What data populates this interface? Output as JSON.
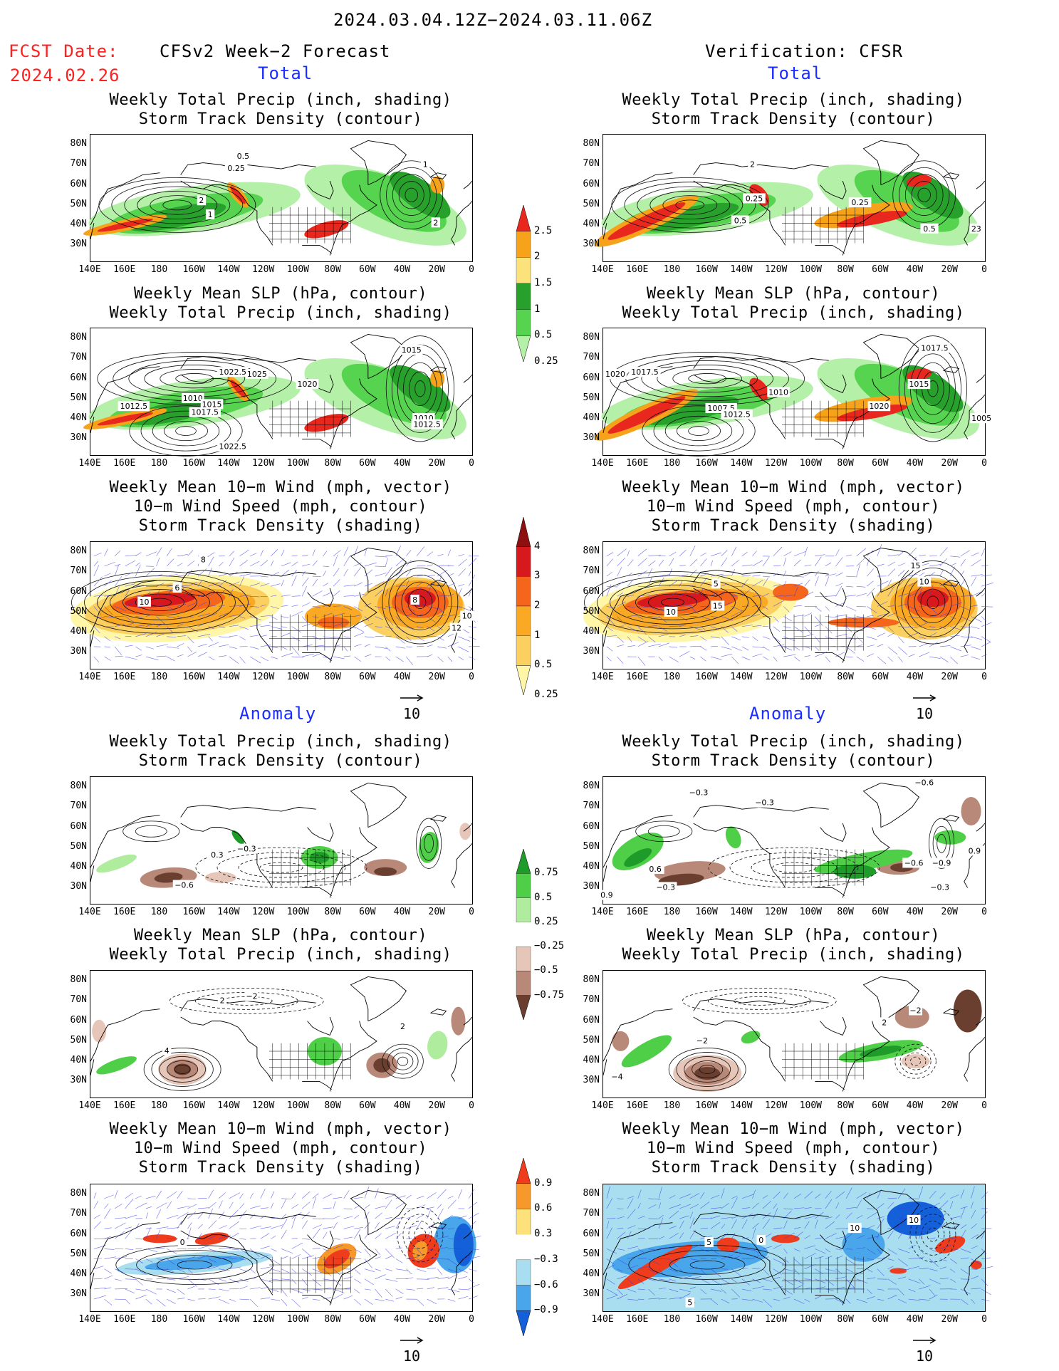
{
  "header": {
    "date_range": "2024.03.04.12Z−2024.03.11.06Z",
    "fcst_label": "FCST Date:",
    "fcst_date": "2024.02.26",
    "left_title": "CFSv2 Week−2 Forecast",
    "right_title": "Verification: CFSR",
    "total_label": "Total",
    "anomaly_label": "Anomaly"
  },
  "panel_titles": {
    "precip_storm": [
      "Weekly Total Precip (inch, shading)",
      "Storm Track Density (contour)"
    ],
    "slp_precip": [
      "Weekly Mean SLP (hPa, contour)",
      "Weekly Total Precip (inch, shading)"
    ],
    "wind": [
      "Weekly Mean 10−m Wind (mph, vector)",
      "10−m Wind Speed (mph, contour)",
      "Storm Track Density (shading)"
    ]
  },
  "axes": {
    "lat": [
      "80N",
      "70N",
      "60N",
      "50N",
      "40N",
      "30N"
    ],
    "lon": [
      "140E",
      "160E",
      "180",
      "160W",
      "140W",
      "120W",
      "100W",
      "80W",
      "60W",
      "40W",
      "20W",
      "0"
    ]
  },
  "vector_ref": "10",
  "colorbars": {
    "precip_total": {
      "labels": [
        "2.5",
        "2",
        "1.5",
        "1",
        "0.5",
        "0.25"
      ],
      "colors": [
        "#e8281e",
        "#f7a21b",
        "#fbe27a",
        "#27a12b",
        "#56d34f",
        "#b4f0a8"
      ]
    },
    "storm_total": {
      "labels": [
        "4",
        "3",
        "2",
        "1",
        "0.5",
        "0.25"
      ],
      "colors": [
        "#8c1010",
        "#d7181c",
        "#f5661c",
        "#f9a923",
        "#fbd060",
        "#fff6a8"
      ]
    },
    "precip_anom": {
      "labels": [
        "0.75",
        "0.5",
        "0.25",
        "−0.25",
        "−0.5",
        "−0.75"
      ],
      "colors": [
        "#1e9b28",
        "#4fcf48",
        "#b0ec9e",
        "#ffffff",
        "#e6c6b8",
        "#b88878",
        "#6a3f2f"
      ]
    },
    "storm_anom": {
      "labels": [
        "0.9",
        "0.6",
        "0.3",
        "−0.3",
        "−0.6",
        "−0.9"
      ],
      "colors": [
        "#ee3c1c",
        "#f7982a",
        "#fde27c",
        "#ffffff",
        "#a8def0",
        "#4aa6ea",
        "#1460d8"
      ]
    }
  },
  "map_labels": {
    "l1": [
      "2",
      "1",
      "0.25",
      "0.5",
      "1",
      "2"
    ],
    "r1": [
      "2",
      "0.25",
      "0.5",
      "0.25",
      "0.5",
      "23"
    ],
    "l2": [
      "1022.5",
      "1025",
      "1015",
      "1010",
      "1015",
      "1017.5",
      "1012.5",
      "1020",
      "1010",
      "1012.5",
      "1022.5"
    ],
    "r2": [
      "1017.5",
      "1020",
      "1017.5",
      "1015",
      "1010",
      "1007.5",
      "1012.5",
      "1020",
      "1005"
    ],
    "l3": [
      "10",
      "8",
      "6",
      "8",
      "10",
      "12"
    ],
    "r3": [
      "10",
      "15",
      "5",
      "15",
      "10"
    ],
    "l4": [
      "−0.6",
      "0.3",
      "−0.3"
    ],
    "r4": [
      "−0.3",
      "−0.3",
      "−0.6",
      "0.6",
      "−0.3",
      "−0.6",
      "−0.9",
      "0.9",
      "−0.3",
      "0.9"
    ],
    "l5": [
      "2",
      "4",
      "2",
      "−2"
    ],
    "r5": [
      "−2",
      "−4",
      "2",
      "−2"
    ],
    "l6": [
      "0"
    ],
    "r6": [
      "10",
      "5",
      "0",
      "10",
      "5"
    ]
  }
}
